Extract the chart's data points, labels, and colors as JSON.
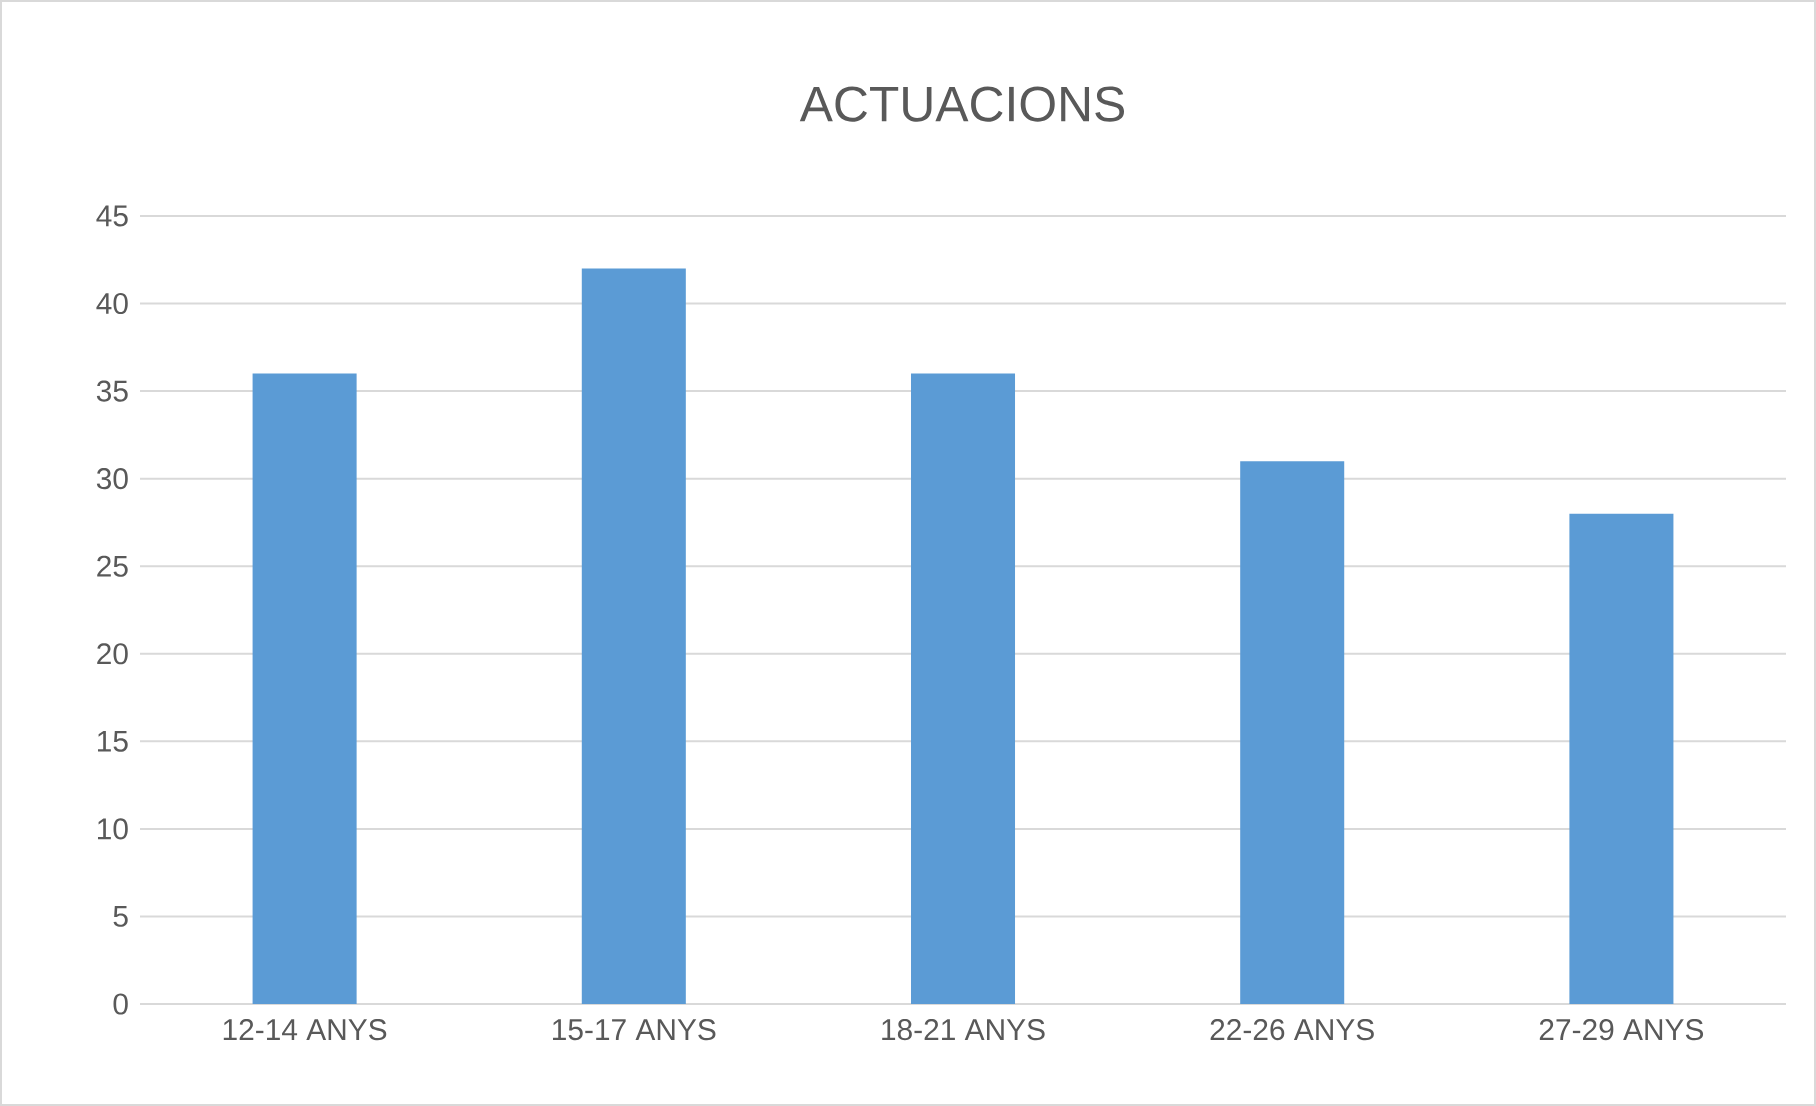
{
  "chart_data": {
    "type": "bar",
    "title": "ACTUACIONS",
    "categories": [
      "12-14 ANYS",
      "15-17 ANYS",
      "18-21 ANYS",
      "22-26 ANYS",
      "27-29 ANYS"
    ],
    "values": [
      36,
      42,
      36,
      31,
      28
    ],
    "color": "#5b9bd5",
    "ylim": [
      0,
      45
    ],
    "yticks": [
      0,
      5,
      10,
      15,
      20,
      25,
      30,
      35,
      40,
      45
    ],
    "grid": "y"
  }
}
